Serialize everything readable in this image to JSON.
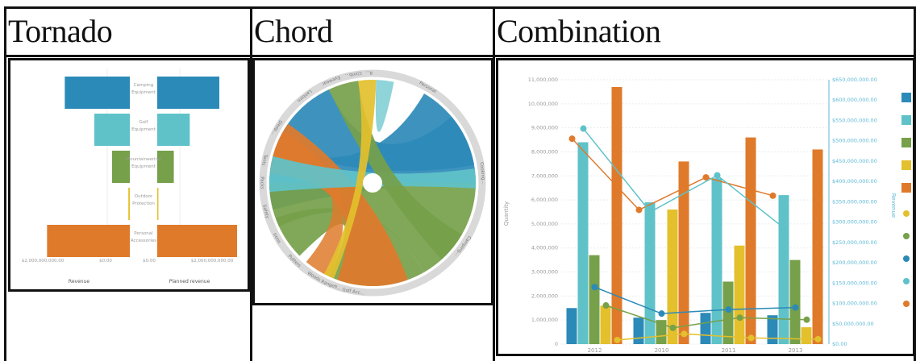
{
  "headers": {
    "col1": "Tornado",
    "col2": "Chord",
    "col3": "Combination"
  },
  "colors": {
    "blue": "#2c8ab8",
    "teal": "#5fc2c9",
    "green": "#76a04a",
    "yellow": "#e3c02c",
    "orange": "#df7a2b"
  },
  "chart_data": [
    {
      "type": "bar",
      "subtype": "tornado",
      "categories": [
        "Camping Equipment",
        "Golf Equipment",
        "Mountaineering Equipment",
        "Outdoor Protection",
        "Personal Accessories"
      ],
      "series": [
        {
          "name": "Revenue",
          "values": [
            1100000000,
            600000000,
            300000000,
            25000000,
            1400000000
          ]
        },
        {
          "name": "Planned revenue",
          "values": [
            1050000000,
            550000000,
            280000000,
            20000000,
            1350000000
          ]
        }
      ],
      "tick_labels": [
        "$2,000,000,000.00",
        "$0.00",
        "$0.00",
        "$2,000,000,000.00"
      ],
      "axis_titles": [
        "Revenue",
        "Planned revenue"
      ]
    },
    {
      "type": "chord",
      "segments": [
        "Personal",
        "Cooking…",
        "Camping…",
        "Golf Acc…",
        "Rangefi…",
        "Woods",
        "Putters",
        "Irons",
        "Safety",
        "Packs",
        "Tents",
        "Sleep…",
        "Lantern",
        "Eyewear",
        "Climb…",
        "R…"
      ]
    },
    {
      "type": "bar-line",
      "categories": [
        "2012",
        "2010",
        "2011",
        "2013"
      ],
      "series": [
        {
          "kind": "bar",
          "values": [
            1500000,
            1100000,
            1300000,
            1200000
          ]
        },
        {
          "kind": "bar",
          "values": [
            8400000,
            5900000,
            6900000,
            6200000
          ]
        },
        {
          "kind": "bar",
          "values": [
            3700000,
            1000000,
            2600000,
            3500000
          ]
        },
        {
          "kind": "bar",
          "values": [
            1600000,
            5600000,
            4100000,
            700000
          ]
        },
        {
          "kind": "bar",
          "values": [
            10700000,
            7600000,
            8600000,
            8100000
          ]
        },
        {
          "kind": "line",
          "values": [
            505000000,
            330000000,
            410000000,
            365000000
          ]
        },
        {
          "kind": "line",
          "values": [
            530000000,
            325000000,
            415000000,
            285000000
          ]
        },
        {
          "kind": "line",
          "values": [
            140000000,
            75000000,
            85000000,
            90000000
          ]
        },
        {
          "kind": "line",
          "values": [
            95000000,
            40000000,
            65000000,
            60000000
          ]
        },
        {
          "kind": "line",
          "values": [
            10000000,
            25000000,
            15000000,
            12000000
          ]
        }
      ],
      "y_left_ticks": [
        "11,000,000",
        "10,000,000",
        "9,000,000",
        "8,000,000",
        "7,000,000",
        "6,000,000",
        "5,000,000",
        "4,000,000",
        "3,000,000",
        "2,000,000",
        "1,000,000",
        "0"
      ],
      "y_right_ticks": [
        "$650,000,000.00",
        "$600,000,000.00",
        "$550,000,000.00",
        "$500,000,000.00",
        "$450,000,000.00",
        "$400,000,000.00",
        "$350,000,000.00",
        "$300,000,000.00",
        "$250,000,000.00",
        "$200,000,000.00",
        "$150,000,000.00",
        "$100,000,000.00",
        "$50,000,000.00",
        "$0.00"
      ],
      "ylabel": "Quantity",
      "ylabel_right": "Revenue",
      "ylim": [
        0,
        11000000
      ],
      "ylim_right": [
        0,
        650000000
      ]
    }
  ]
}
